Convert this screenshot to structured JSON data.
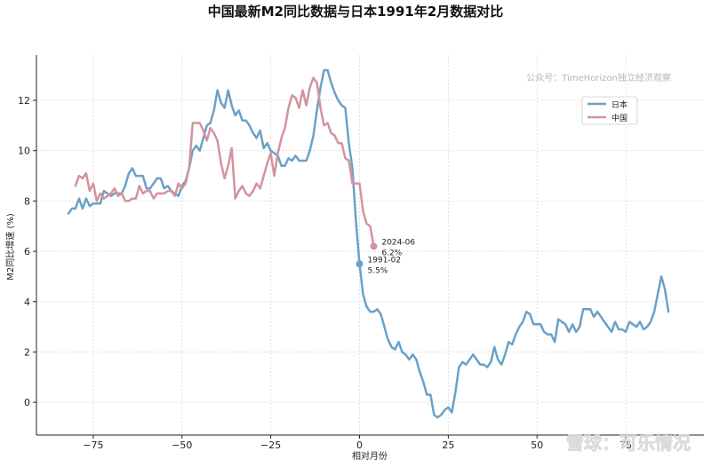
{
  "chart_data": {
    "type": "line",
    "title": "中国最新M2同比数据与日本1991年2月数据对比",
    "xlabel": "相对月份",
    "ylabel": "M2同比增速 (%)",
    "xlim": [
      -91,
      97
    ],
    "ylim": [
      -1.3,
      13.8
    ],
    "x_ticks": [
      -75,
      -50,
      -25,
      0,
      25,
      50,
      75
    ],
    "x_tick_labels": [
      "−75",
      "−50",
      "−25",
      "0",
      "25",
      "50",
      "75"
    ],
    "y_ticks": [
      0,
      2,
      4,
      6,
      8,
      10,
      12
    ],
    "y_tick_labels": [
      "0",
      "2",
      "4",
      "6",
      "8",
      "10",
      "12"
    ],
    "grid": true,
    "legend_position": "top-right",
    "watermark": "公众号：TimeHorizon独立经济观察",
    "corner_watermark": "雪球：可乐情况",
    "series": [
      {
        "name": "日本",
        "color": "#6aa1c8",
        "points": [
          [
            -82,
            7.5
          ],
          [
            -81,
            7.7
          ],
          [
            -80,
            7.7
          ],
          [
            -79,
            8.1
          ],
          [
            -78,
            7.7
          ],
          [
            -77,
            8.1
          ],
          [
            -76,
            7.8
          ],
          [
            -75,
            7.9
          ],
          [
            -74,
            7.9
          ],
          [
            -73,
            7.9
          ],
          [
            -72,
            8.4
          ],
          [
            -71,
            8.3
          ],
          [
            -70,
            8.2
          ],
          [
            -69,
            8.3
          ],
          [
            -68,
            8.3
          ],
          [
            -67,
            8.3
          ],
          [
            -66,
            8.6
          ],
          [
            -65,
            9.1
          ],
          [
            -64,
            9.3
          ],
          [
            -63,
            9.0
          ],
          [
            -62,
            9.0
          ],
          [
            -61,
            9.0
          ],
          [
            -60,
            8.5
          ],
          [
            -59,
            8.5
          ],
          [
            -58,
            8.7
          ],
          [
            -57,
            8.9
          ],
          [
            -56,
            8.9
          ],
          [
            -55,
            8.5
          ],
          [
            -54,
            8.6
          ],
          [
            -53,
            8.4
          ],
          [
            -52,
            8.3
          ],
          [
            -51,
            8.2
          ],
          [
            -50,
            8.6
          ],
          [
            -49,
            8.8
          ],
          [
            -48,
            9.3
          ],
          [
            -47,
            10.0
          ],
          [
            -46,
            10.2
          ],
          [
            -45,
            10.0
          ],
          [
            -44,
            10.5
          ],
          [
            -43,
            11.0
          ],
          [
            -42,
            11.1
          ],
          [
            -41,
            11.6
          ],
          [
            -40,
            12.4
          ],
          [
            -39,
            11.9
          ],
          [
            -38,
            11.7
          ],
          [
            -37,
            12.4
          ],
          [
            -36,
            11.8
          ],
          [
            -35,
            11.4
          ],
          [
            -34,
            11.6
          ],
          [
            -33,
            11.2
          ],
          [
            -32,
            11.2
          ],
          [
            -31,
            11.0
          ],
          [
            -30,
            10.7
          ],
          [
            -29,
            10.5
          ],
          [
            -28,
            10.8
          ],
          [
            -27,
            10.1
          ],
          [
            -26,
            10.3
          ],
          [
            -25,
            10.0
          ],
          [
            -24,
            9.9
          ],
          [
            -23,
            9.8
          ],
          [
            -22,
            9.4
          ],
          [
            -21,
            9.4
          ],
          [
            -20,
            9.7
          ],
          [
            -19,
            9.6
          ],
          [
            -18,
            9.8
          ],
          [
            -17,
            9.6
          ],
          [
            -16,
            9.6
          ],
          [
            -15,
            9.6
          ],
          [
            -14,
            10.0
          ],
          [
            -13,
            10.6
          ],
          [
            -12,
            11.6
          ],
          [
            -11,
            12.5
          ],
          [
            -10,
            13.2
          ],
          [
            -9,
            13.2
          ],
          [
            -8,
            12.7
          ],
          [
            -7,
            12.3
          ],
          [
            -6,
            12.0
          ],
          [
            -5,
            11.8
          ],
          [
            -4,
            11.7
          ],
          [
            -3,
            10.3
          ],
          [
            -2,
            9.3
          ],
          [
            -1,
            7.2
          ],
          [
            0,
            5.5
          ],
          [
            1,
            4.3
          ],
          [
            2,
            3.8
          ],
          [
            3,
            3.6
          ],
          [
            4,
            3.6
          ],
          [
            5,
            3.7
          ],
          [
            6,
            3.5
          ],
          [
            7,
            3.0
          ],
          [
            8,
            2.5
          ],
          [
            9,
            2.2
          ],
          [
            10,
            2.1
          ],
          [
            11,
            2.4
          ],
          [
            12,
            2.0
          ],
          [
            13,
            1.9
          ],
          [
            14,
            1.7
          ],
          [
            15,
            1.9
          ],
          [
            16,
            1.7
          ],
          [
            17,
            1.2
          ],
          [
            18,
            0.8
          ],
          [
            19,
            0.3
          ],
          [
            20,
            0.3
          ],
          [
            21,
            -0.5
          ],
          [
            22,
            -0.6
          ],
          [
            23,
            -0.5
          ],
          [
            24,
            -0.3
          ],
          [
            25,
            -0.2
          ],
          [
            26,
            -0.4
          ],
          [
            27,
            0.4
          ],
          [
            28,
            1.4
          ],
          [
            29,
            1.6
          ],
          [
            30,
            1.5
          ],
          [
            31,
            1.7
          ],
          [
            32,
            1.9
          ],
          [
            33,
            1.7
          ],
          [
            34,
            1.5
          ],
          [
            35,
            1.5
          ],
          [
            36,
            1.4
          ],
          [
            37,
            1.6
          ],
          [
            38,
            2.2
          ],
          [
            39,
            1.7
          ],
          [
            40,
            1.5
          ],
          [
            41,
            1.9
          ],
          [
            42,
            2.4
          ],
          [
            43,
            2.3
          ],
          [
            44,
            2.7
          ],
          [
            45,
            3.0
          ],
          [
            46,
            3.2
          ],
          [
            47,
            3.6
          ],
          [
            48,
            3.5
          ],
          [
            49,
            3.1
          ],
          [
            50,
            3.1
          ],
          [
            51,
            3.1
          ],
          [
            52,
            2.8
          ],
          [
            53,
            2.7
          ],
          [
            54,
            2.7
          ],
          [
            55,
            2.4
          ],
          [
            56,
            3.3
          ],
          [
            57,
            3.2
          ],
          [
            58,
            3.1
          ],
          [
            59,
            2.8
          ],
          [
            60,
            3.1
          ],
          [
            61,
            2.8
          ],
          [
            62,
            3.0
          ],
          [
            63,
            3.7
          ],
          [
            64,
            3.7
          ],
          [
            65,
            3.7
          ],
          [
            66,
            3.4
          ],
          [
            67,
            3.6
          ],
          [
            68,
            3.4
          ],
          [
            69,
            3.2
          ],
          [
            70,
            3.0
          ],
          [
            71,
            2.8
          ],
          [
            72,
            3.2
          ],
          [
            73,
            2.9
          ],
          [
            74,
            2.9
          ],
          [
            75,
            2.8
          ],
          [
            76,
            3.2
          ],
          [
            77,
            3.1
          ],
          [
            78,
            3.0
          ],
          [
            79,
            3.2
          ],
          [
            80,
            2.9
          ],
          [
            81,
            3.0
          ],
          [
            82,
            3.2
          ],
          [
            83,
            3.6
          ],
          [
            84,
            4.3
          ],
          [
            85,
            5.0
          ],
          [
            86,
            4.5
          ],
          [
            87,
            3.6
          ]
        ]
      },
      {
        "name": "中国",
        "color": "#d4939e",
        "points": [
          [
            -80,
            8.6
          ],
          [
            -79,
            9.0
          ],
          [
            -78,
            8.9
          ],
          [
            -77,
            9.1
          ],
          [
            -76,
            8.4
          ],
          [
            -75,
            8.7
          ],
          [
            -74,
            8.0
          ],
          [
            -73,
            8.3
          ],
          [
            -72,
            8.1
          ],
          [
            -71,
            8.2
          ],
          [
            -70,
            8.3
          ],
          [
            -69,
            8.5
          ],
          [
            -68,
            8.2
          ],
          [
            -67,
            8.3
          ],
          [
            -66,
            8.0
          ],
          [
            -65,
            8.0
          ],
          [
            -64,
            8.1
          ],
          [
            -63,
            8.1
          ],
          [
            -62,
            8.6
          ],
          [
            -61,
            8.3
          ],
          [
            -60,
            8.4
          ],
          [
            -59,
            8.4
          ],
          [
            -58,
            8.1
          ],
          [
            -57,
            8.3
          ],
          [
            -56,
            8.3
          ],
          [
            -55,
            8.3
          ],
          [
            -54,
            8.4
          ],
          [
            -53,
            8.4
          ],
          [
            -52,
            8.2
          ],
          [
            -51,
            8.7
          ],
          [
            -50,
            8.5
          ],
          [
            -49,
            8.7
          ],
          [
            -48,
            9.3
          ],
          [
            -47,
            11.1
          ],
          [
            -46,
            11.1
          ],
          [
            -45,
            11.1
          ],
          [
            -44,
            10.8
          ],
          [
            -43,
            10.4
          ],
          [
            -42,
            10.9
          ],
          [
            -41,
            10.7
          ],
          [
            -40,
            10.4
          ],
          [
            -39,
            9.5
          ],
          [
            -38,
            8.9
          ],
          [
            -37,
            9.4
          ],
          [
            -36,
            10.1
          ],
          [
            -35,
            8.1
          ],
          [
            -34,
            8.4
          ],
          [
            -33,
            8.6
          ],
          [
            -32,
            8.3
          ],
          [
            -31,
            8.2
          ],
          [
            -30,
            8.4
          ],
          [
            -29,
            8.7
          ],
          [
            -28,
            8.5
          ],
          [
            -27,
            9.0
          ],
          [
            -26,
            9.5
          ],
          [
            -25,
            9.9
          ],
          [
            -24,
            9.0
          ],
          [
            -23,
            9.9
          ],
          [
            -22,
            10.5
          ],
          [
            -21,
            10.9
          ],
          [
            -20,
            11.7
          ],
          [
            -19,
            12.2
          ],
          [
            -18,
            12.1
          ],
          [
            -17,
            11.7
          ],
          [
            -16,
            12.4
          ],
          [
            -15,
            11.8
          ],
          [
            -14,
            12.5
          ],
          [
            -13,
            12.9
          ],
          [
            -12,
            12.7
          ],
          [
            -11,
            11.7
          ],
          [
            -10,
            11.0
          ],
          [
            -9,
            11.1
          ],
          [
            -8,
            10.7
          ],
          [
            -7,
            10.6
          ],
          [
            -6,
            10.3
          ],
          [
            -5,
            10.3
          ],
          [
            -4,
            9.7
          ],
          [
            -3,
            9.6
          ],
          [
            -2,
            8.7
          ],
          [
            -1,
            8.7
          ],
          [
            0,
            8.7
          ],
          [
            1,
            7.6
          ],
          [
            2,
            7.1
          ],
          [
            3,
            7.0
          ],
          [
            4,
            6.2
          ]
        ]
      }
    ],
    "annotations": [
      {
        "series": "日本",
        "x": 0,
        "y": 5.5,
        "date": "1991-02",
        "value": "5.5%"
      },
      {
        "series": "中国",
        "x": 4,
        "y": 6.2,
        "date": "2024-06",
        "value": "6.2%"
      }
    ]
  }
}
